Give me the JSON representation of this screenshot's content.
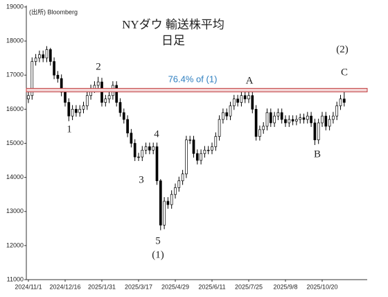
{
  "chart_data": {
    "type": "candlestick",
    "title": "NYダウ 輸送株平均",
    "subtitle": "日足",
    "source": "(出所) Bloomberg",
    "categories": [
      "2024/11/1",
      null,
      null,
      null,
      null,
      null,
      null,
      null,
      null,
      null,
      "2024/12/16",
      null,
      null,
      null,
      null,
      null,
      null,
      null,
      null,
      null,
      "2025/1/31",
      null,
      null,
      null,
      null,
      null,
      null,
      null,
      null,
      null,
      "2025/3/17",
      null,
      null,
      null,
      null,
      null,
      null,
      null,
      null,
      null,
      "2025/4/29",
      null,
      null,
      null,
      null,
      null,
      null,
      null,
      null,
      null,
      "2025/6/11",
      null,
      null,
      null,
      null,
      null,
      null,
      null,
      null,
      null,
      "2025/7/25",
      null,
      null,
      null,
      null,
      null,
      null,
      null,
      null,
      null,
      "2025/9/8",
      null,
      null,
      null,
      null,
      null,
      null,
      null,
      null,
      null,
      "2025/10/20",
      null,
      null,
      null,
      null,
      null,
      null
    ],
    "open": [
      16300,
      16400,
      17400,
      17500,
      17600,
      17500,
      17750,
      17400,
      17000,
      16900,
      16500,
      16200,
      15800,
      16000,
      15900,
      16000,
      16100,
      16400,
      16600,
      16700,
      16800,
      16200,
      16300,
      16400,
      16700,
      16200,
      15900,
      15700,
      15300,
      15000,
      14600,
      14600,
      14800,
      14900,
      14800,
      14900,
      13900,
      12600,
      13300,
      13200,
      13500,
      13700,
      13900,
      14100,
      15100,
      15100,
      14700,
      14500,
      14700,
      14800,
      14800,
      14900,
      15200,
      15700,
      15900,
      15800,
      16100,
      16300,
      16200,
      16400,
      16300,
      16400,
      16000,
      15200,
      15400,
      15500,
      15900,
      15600,
      15800,
      15900,
      15700,
      15600,
      15700,
      15650,
      15700,
      15750,
      15700,
      15800,
      15600,
      15100,
      15600,
      15800,
      15500,
      15700,
      15800,
      16100,
      16300
    ],
    "high": [
      16520,
      17520,
      17620,
      17720,
      17720,
      17850,
      17800,
      17520,
      17120,
      17020,
      16620,
      16320,
      16120,
      16120,
      16120,
      16220,
      16520,
      16720,
      16820,
      16950,
      16920,
      16420,
      16520,
      16820,
      16820,
      16320,
      16020,
      15820,
      15420,
      15120,
      14720,
      14920,
      15020,
      15020,
      15020,
      15020,
      13950,
      13420,
      13420,
      13620,
      13820,
      14020,
      14220,
      15220,
      15220,
      15220,
      14820,
      14820,
      14920,
      14920,
      15020,
      15320,
      15820,
      16020,
      16020,
      16220,
      16420,
      16420,
      16520,
      16520,
      16550,
      16520,
      16120,
      15520,
      15620,
      16020,
      16020,
      15920,
      16020,
      16020,
      15820,
      15820,
      15820,
      15820,
      15870,
      15870,
      15920,
      15920,
      15720,
      15720,
      15920,
      15920,
      15820,
      15920,
      16220,
      16420,
      16500
    ],
    "low": [
      16180,
      16280,
      17280,
      17380,
      17380,
      17380,
      17280,
      16880,
      16780,
      16380,
      16080,
      15650,
      15680,
      15780,
      15780,
      15880,
      15980,
      16280,
      16480,
      16580,
      16080,
      16080,
      16180,
      16280,
      16080,
      15780,
      15580,
      15180,
      14880,
      14480,
      14480,
      14480,
      14680,
      14680,
      14680,
      13780,
      12450,
      12480,
      13080,
      13080,
      13380,
      13580,
      13780,
      13980,
      14980,
      14580,
      14380,
      14380,
      14580,
      14680,
      14680,
      14780,
      15080,
      15580,
      15680,
      15680,
      15980,
      16080,
      16080,
      16180,
      16180,
      15880,
      15080,
      15080,
      15280,
      15380,
      15480,
      15480,
      15680,
      15580,
      15480,
      15480,
      15530,
      15530,
      15580,
      15580,
      15580,
      15480,
      14950,
      14980,
      15480,
      15380,
      15380,
      15580,
      15680,
      15980,
      16080
    ],
    "close": [
      16400,
      17400,
      17500,
      17600,
      17500,
      17750,
      17400,
      17000,
      16900,
      16500,
      16200,
      15800,
      16000,
      15900,
      16000,
      16100,
      16400,
      16600,
      16700,
      16800,
      16200,
      16300,
      16400,
      16700,
      16200,
      15900,
      15700,
      15300,
      15000,
      14600,
      14600,
      14800,
      14900,
      14800,
      14900,
      13900,
      12600,
      13300,
      13200,
      13500,
      13700,
      13900,
      14100,
      15100,
      15100,
      14700,
      14500,
      14700,
      14800,
      14800,
      14900,
      15200,
      15700,
      15900,
      15800,
      16100,
      16300,
      16200,
      16400,
      16300,
      16400,
      16000,
      15200,
      15400,
      15500,
      15900,
      15600,
      15800,
      15900,
      15700,
      15600,
      15700,
      15650,
      15700,
      15750,
      15700,
      15800,
      15600,
      15100,
      15600,
      15800,
      15500,
      15700,
      15800,
      16100,
      16300,
      16200
    ],
    "up_color": "#ffffff",
    "down_color": "#000000",
    "edge_color": "#000000",
    "ylim": [
      11000,
      19000
    ],
    "yticks": [
      11000,
      12000,
      13000,
      14000,
      15000,
      16000,
      17000,
      18000,
      19000
    ],
    "reference_line": {
      "value": 16560,
      "label": "76.4% of (1)",
      "color": "#c0393b",
      "label_color": "#2e7fc0"
    },
    "annotations": [
      "1",
      "2",
      "3",
      "4",
      "5",
      "(1)",
      "A",
      "B",
      "(2)",
      "C"
    ]
  }
}
